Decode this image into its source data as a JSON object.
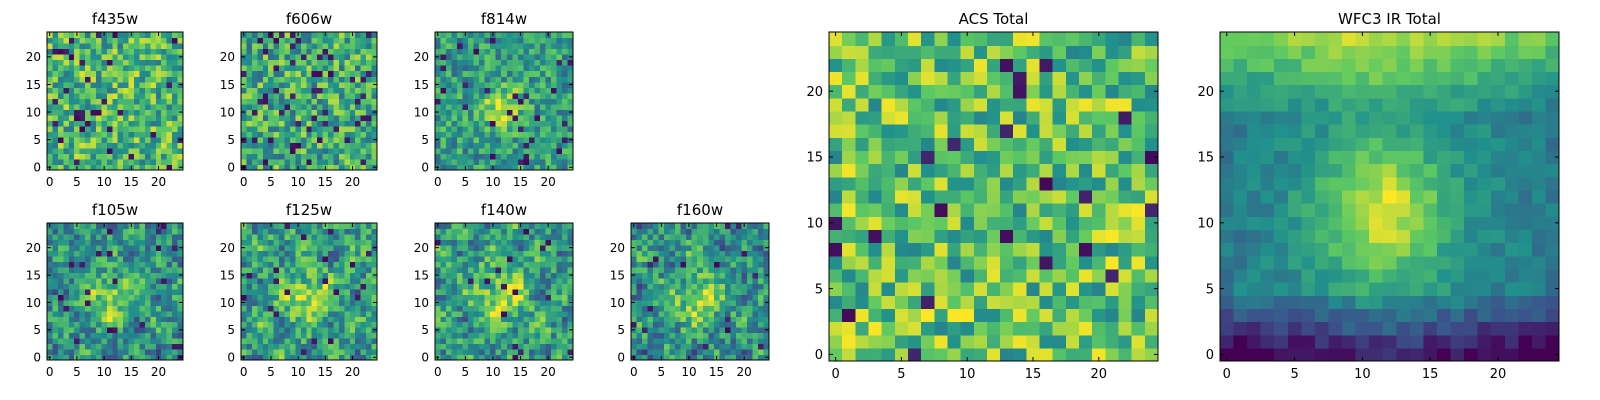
{
  "figure": {
    "colormap": "viridis",
    "colors": [
      "#440154",
      "#3b528b",
      "#21918c",
      "#5ec962",
      "#fde725"
    ],
    "background": "#ffffff"
  },
  "chart_data": [
    {
      "id": "f435w",
      "type": "heatmap",
      "title": "f435w",
      "grid_size": [
        25,
        25
      ],
      "xlim": [
        0,
        24
      ],
      "ylim": [
        0,
        24
      ],
      "xticks": [
        "0",
        "5",
        "10",
        "15",
        "20"
      ],
      "yticks": [
        "0",
        "5",
        "10",
        "15",
        "20"
      ],
      "values": [],
      "style": "noise",
      "seed": 11,
      "dark_fraction": 0.05,
      "yellow_bias": 0.05
    },
    {
      "id": "f606w",
      "type": "heatmap",
      "title": "f606w",
      "grid_size": [
        25,
        25
      ],
      "xlim": [
        0,
        24
      ],
      "ylim": [
        0,
        24
      ],
      "xticks": [
        "0",
        "5",
        "10",
        "15",
        "20"
      ],
      "yticks": [
        "0",
        "5",
        "10",
        "15",
        "20"
      ],
      "values": [],
      "style": "noise",
      "seed": 23,
      "dark_fraction": 0.07,
      "yellow_bias": 0.0
    },
    {
      "id": "f814w",
      "type": "heatmap",
      "title": "f814w",
      "grid_size": [
        25,
        25
      ],
      "xlim": [
        0,
        24
      ],
      "ylim": [
        0,
        24
      ],
      "xticks": [
        "0",
        "5",
        "10",
        "15",
        "20"
      ],
      "yticks": [
        "0",
        "5",
        "10",
        "15",
        "20"
      ],
      "values": [],
      "style": "source",
      "seed": 37,
      "dark_fraction": 0.04,
      "yellow_bias": 0.05
    },
    {
      "id": "f105w",
      "type": "heatmap",
      "title": "f105w",
      "grid_size": [
        25,
        25
      ],
      "xlim": [
        0,
        24
      ],
      "ylim": [
        0,
        24
      ],
      "xticks": [
        "0",
        "5",
        "10",
        "15",
        "20"
      ],
      "yticks": [
        "0",
        "5",
        "10",
        "15",
        "20"
      ],
      "values": [],
      "style": "ir",
      "seed": 41,
      "dark_fraction": 0.03,
      "yellow_bias": 0.0
    },
    {
      "id": "f125w",
      "type": "heatmap",
      "title": "f125w",
      "grid_size": [
        25,
        25
      ],
      "xlim": [
        0,
        24
      ],
      "ylim": [
        0,
        24
      ],
      "xticks": [
        "0",
        "5",
        "10",
        "15",
        "20"
      ],
      "yticks": [
        "0",
        "5",
        "10",
        "15",
        "20"
      ],
      "values": [],
      "style": "ir",
      "seed": 53,
      "dark_fraction": 0.03,
      "yellow_bias": 0.05
    },
    {
      "id": "f140w",
      "type": "heatmap",
      "title": "f140w",
      "grid_size": [
        25,
        25
      ],
      "xlim": [
        0,
        24
      ],
      "ylim": [
        0,
        24
      ],
      "xticks": [
        "0",
        "5",
        "10",
        "15",
        "20"
      ],
      "yticks": [
        "0",
        "5",
        "10",
        "15",
        "20"
      ],
      "values": [],
      "style": "ir",
      "seed": 67,
      "dark_fraction": 0.03,
      "yellow_bias": 0.05
    },
    {
      "id": "f160w",
      "type": "heatmap",
      "title": "f160w",
      "grid_size": [
        25,
        25
      ],
      "xlim": [
        0,
        24
      ],
      "ylim": [
        0,
        24
      ],
      "xticks": [
        "0",
        "5",
        "10",
        "15",
        "20"
      ],
      "yticks": [
        "0",
        "5",
        "10",
        "15",
        "20"
      ],
      "values": [],
      "style": "ir",
      "seed": 79,
      "dark_fraction": 0.02,
      "yellow_bias": 0.0
    },
    {
      "id": "acs-total",
      "type": "heatmap",
      "title": "ACS Total",
      "grid_size": [
        25,
        25
      ],
      "xlim": [
        0,
        24
      ],
      "ylim": [
        0,
        24
      ],
      "xticks": [
        "0",
        "5",
        "10",
        "15",
        "20"
      ],
      "yticks": [
        "0",
        "5",
        "10",
        "15",
        "20"
      ],
      "values": [],
      "style": "noise",
      "seed": 97,
      "dark_fraction": 0.04,
      "yellow_bias": 0.1
    },
    {
      "id": "wfc3-ir-total",
      "type": "heatmap",
      "title": "WFC3 IR Total",
      "grid_size": [
        25,
        25
      ],
      "xlim": [
        0,
        24
      ],
      "ylim": [
        0,
        24
      ],
      "xticks": [
        "0",
        "5",
        "10",
        "15",
        "20"
      ],
      "yticks": [
        "0",
        "5",
        "10",
        "15",
        "20"
      ],
      "values": [],
      "style": "smooth",
      "seed": 113,
      "dark_fraction": 0.0,
      "yellow_bias": 0.0
    }
  ]
}
